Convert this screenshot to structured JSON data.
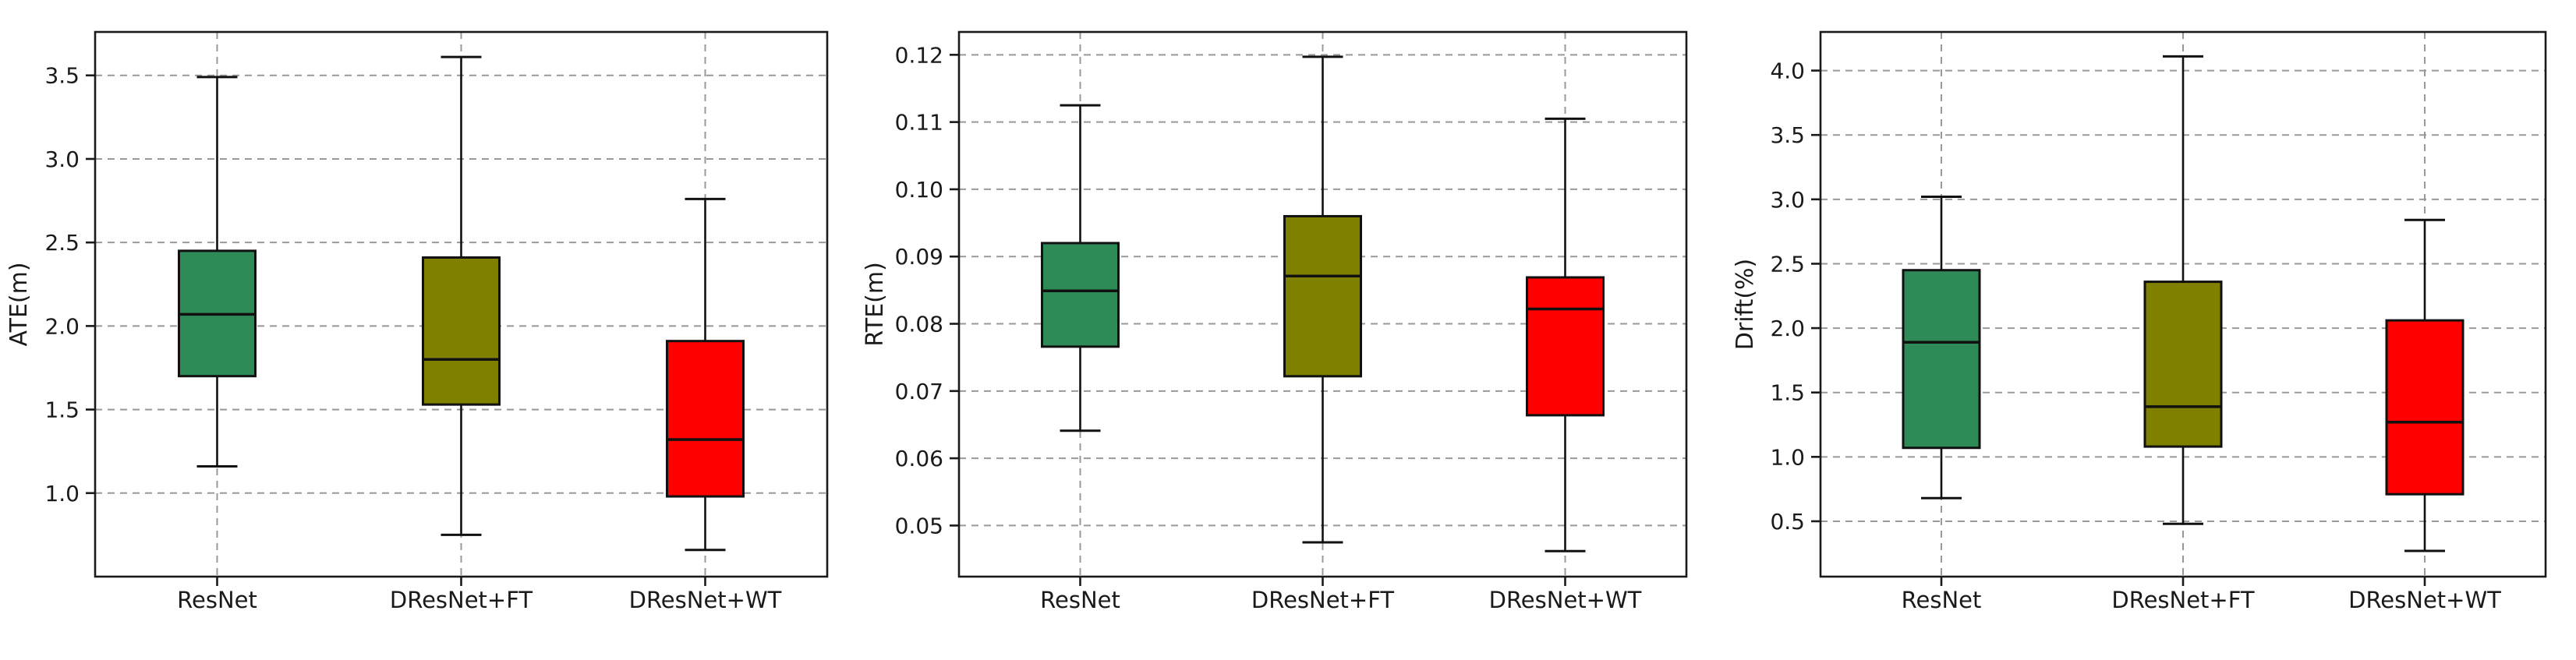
{
  "figure": {
    "description": "Three box-and-whisker plots comparing ResNet, DResNet+FT and DResNet+WT on ATE, RTE and Drift metrics",
    "categories": [
      "ResNet",
      "DResNet+FT",
      "DResNet+WT"
    ],
    "box_colors": [
      "#2e8b57",
      "#808000",
      "#ff0000"
    ],
    "edge_color": "#111111",
    "grid_color": "#999999",
    "spine_color": "#1a1a1a",
    "text_color": "#1a1a1a",
    "background_color": "#ffffff"
  },
  "chart_data": [
    {
      "type": "box",
      "name": "ate-boxplot",
      "title": "",
      "xlabel": "",
      "ylabel": "ATE(m)",
      "categories": [
        "ResNet",
        "DResNet+FT",
        "DResNet+WT"
      ],
      "ytick_labels": [
        "1.0",
        "1.5",
        "2.0",
        "2.5",
        "3.0",
        "3.5"
      ],
      "yticks": [
        1.0,
        1.5,
        2.0,
        2.5,
        3.0,
        3.5
      ],
      "ylim": [
        0.5,
        3.76
      ],
      "grid": true,
      "legend": null,
      "series": [
        {
          "name": "ResNet",
          "color": "#2e8b57",
          "whisker_low": 1.16,
          "q1": 1.7,
          "median": 2.07,
          "q3": 2.45,
          "whisker_high": 3.49
        },
        {
          "name": "DResNet+FT",
          "color": "#808000",
          "whisker_low": 0.75,
          "q1": 1.53,
          "median": 1.8,
          "q3": 2.41,
          "whisker_high": 3.61
        },
        {
          "name": "DResNet+WT",
          "color": "#ff0000",
          "whisker_low": 0.66,
          "q1": 0.98,
          "median": 1.32,
          "q3": 1.91,
          "whisker_high": 2.76
        }
      ]
    },
    {
      "type": "box",
      "name": "rte-boxplot",
      "title": "",
      "xlabel": "",
      "ylabel": "RTE(m)",
      "categories": [
        "ResNet",
        "DResNet+FT",
        "DResNet+WT"
      ],
      "ytick_labels": [
        "0.05",
        "0.06",
        "0.07",
        "0.08",
        "0.09",
        "0.10",
        "0.11",
        "0.12"
      ],
      "yticks": [
        0.05,
        0.06,
        0.07,
        0.08,
        0.09,
        0.1,
        0.11,
        0.12
      ],
      "ylim": [
        0.0424,
        0.1234
      ],
      "grid": true,
      "legend": null,
      "series": [
        {
          "name": "ResNet",
          "color": "#2e8b57",
          "whisker_low": 0.0641,
          "q1": 0.0766,
          "median": 0.0849,
          "q3": 0.092,
          "whisker_high": 0.1125
        },
        {
          "name": "DResNet+FT",
          "color": "#808000",
          "whisker_low": 0.0475,
          "q1": 0.0722,
          "median": 0.0871,
          "q3": 0.096,
          "whisker_high": 0.1197
        },
        {
          "name": "DResNet+WT",
          "color": "#ff0000",
          "whisker_low": 0.0462,
          "q1": 0.0664,
          "median": 0.0822,
          "q3": 0.0869,
          "whisker_high": 0.1105
        }
      ]
    },
    {
      "type": "box",
      "name": "drift-boxplot",
      "title": "",
      "xlabel": "",
      "ylabel": "Drift(%)",
      "categories": [
        "ResNet",
        "DResNet+FT",
        "DResNet+WT"
      ],
      "ytick_labels": [
        "0.5",
        "1.0",
        "1.5",
        "2.0",
        "2.5",
        "3.0",
        "3.5",
        "4.0"
      ],
      "yticks": [
        0.5,
        1.0,
        1.5,
        2.0,
        2.5,
        3.0,
        3.5,
        4.0
      ],
      "ylim": [
        0.07,
        4.3
      ],
      "grid": true,
      "legend": null,
      "series": [
        {
          "name": "ResNet",
          "color": "#2e8b57",
          "whisker_low": 0.68,
          "q1": 1.07,
          "median": 1.89,
          "q3": 2.45,
          "whisker_high": 3.02
        },
        {
          "name": "DResNet+FT",
          "color": "#808000",
          "whisker_low": 0.48,
          "q1": 1.08,
          "median": 1.39,
          "q3": 2.36,
          "whisker_high": 4.11
        },
        {
          "name": "DResNet+WT",
          "color": "#ff0000",
          "whisker_low": 0.27,
          "q1": 0.71,
          "median": 1.27,
          "q3": 2.06,
          "whisker_high": 2.84
        }
      ]
    }
  ]
}
